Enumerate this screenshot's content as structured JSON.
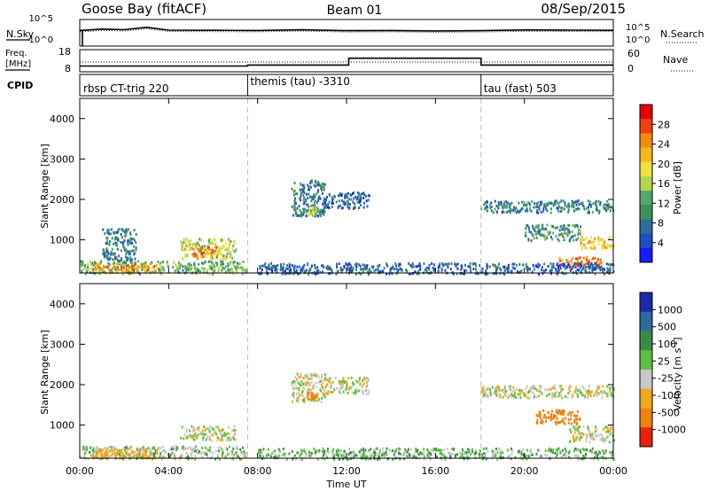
{
  "header": {
    "station": "Goose Bay (fitACF)",
    "beam": "Beam 01",
    "date": "08/Sep/2015"
  },
  "noise_panel": {
    "left_label": "N.Sky",
    "right_label": "N.Search",
    "left_ticks": [
      "10^5",
      "10^0"
    ],
    "right_ticks": [
      "10^5",
      "10^0"
    ]
  },
  "freq_panel": {
    "left_label_1": "Freq.",
    "left_label_2": "[MHz]",
    "right_label": "Nave",
    "left_ticks": [
      "18",
      "8"
    ],
    "right_ticks": [
      "60",
      "0"
    ]
  },
  "cpid_panel": {
    "label": "CPID",
    "segments": [
      {
        "label": "rbsp CT-trig 220",
        "start_hr": 0.0
      },
      {
        "label": "themis (tau) -3310",
        "start_hr": 7.55
      },
      {
        "label": "tau (fast) 503",
        "start_hr": 18.05
      }
    ]
  },
  "time_axis": {
    "title": "Time UT",
    "ticks": [
      "00:00",
      "04:00",
      "08:00",
      "12:00",
      "16:00",
      "20:00",
      "00:00"
    ]
  },
  "power_panel": {
    "ylabel": "Slant Range [km]",
    "yticks": [
      "4000",
      "3000",
      "2000",
      "1000"
    ],
    "colorbar_label": "Power [dB]",
    "colorbar_ticks": [
      "28",
      "24",
      "20",
      "16",
      "12",
      "8",
      "4"
    ],
    "colors": [
      "#1a1aff",
      "#1f4fbf",
      "#2e6b9e",
      "#3f8f5a",
      "#55a86a",
      "#b5d84a",
      "#f0e040",
      "#f5b820",
      "#f58a10",
      "#f04010",
      "#e80000"
    ]
  },
  "velocity_panel": {
    "ylabel": "Slant Range [km]",
    "yticks": [
      "4000",
      "3000",
      "2000",
      "1000"
    ],
    "colorbar_label": "Velocity [m s^-1]",
    "colorbar_ticks": [
      "1000",
      "500",
      "100",
      "25",
      "-25",
      "-100",
      "-500",
      "-1000"
    ],
    "colors": [
      "#1a2aa8",
      "#2c6aa0",
      "#3a8a4a",
      "#5ec040",
      "#c8c8c8",
      "#f0a820",
      "#f08010",
      "#e82010"
    ]
  },
  "chart_data": [
    {
      "type": "line",
      "title": "N.Sky / N.Search",
      "x": [
        0,
        1,
        2,
        3,
        4,
        6,
        8,
        10,
        12,
        14,
        16,
        18,
        20,
        22,
        24
      ],
      "series": [
        {
          "values": [
            1000,
            2000,
            1500,
            5000,
            1200,
            1100,
            1000,
            1400,
            900,
            1000,
            800,
            900,
            1300,
            1200,
            1100
          ]
        }
      ],
      "ylim": [
        1,
        100000
      ]
    },
    {
      "type": "line",
      "title": "Freq. / Nave",
      "x": [
        0,
        7.55,
        7.55,
        12.1,
        12.1,
        18.05,
        18.05,
        24
      ],
      "series": [
        {
          "values": [
            10.5,
            10.5,
            11,
            11,
            14.5,
            14.5,
            11,
            11
          ]
        }
      ],
      "ylim": [
        8,
        18
      ]
    },
    {
      "type": "heatmap",
      "title": "Power [dB]",
      "xlabel": "Time UT",
      "ylabel": "Slant Range [km]",
      "xlim": [
        0,
        24
      ],
      "ylim": [
        180,
        4500
      ],
      "scatter_regions": [
        {
          "t": [
            0.0,
            7.5
          ],
          "r": [
            180,
            500
          ],
          "value": 12
        },
        {
          "t": [
            0.5,
            3.5
          ],
          "r": [
            200,
            450
          ],
          "value": 22
        },
        {
          "t": [
            1.0,
            2.5
          ],
          "r": [
            500,
            1300
          ],
          "value": 8
        },
        {
          "t": [
            4.5,
            7.0
          ],
          "r": [
            550,
            1050
          ],
          "value": 16
        },
        {
          "t": [
            5.0,
            6.2
          ],
          "r": [
            600,
            850
          ],
          "value": 24
        },
        {
          "t": [
            9.5,
            11.0
          ],
          "r": [
            1600,
            2500
          ],
          "value": 8
        },
        {
          "t": [
            10.2,
            10.6
          ],
          "r": [
            1650,
            1850
          ],
          "value": 16
        },
        {
          "t": [
            11.0,
            13.0
          ],
          "r": [
            1800,
            2200
          ],
          "value": 6
        },
        {
          "t": [
            18.0,
            24.0
          ],
          "r": [
            1700,
            2000
          ],
          "value": 8
        },
        {
          "t": [
            20.0,
            22.5
          ],
          "r": [
            1000,
            1400
          ],
          "value": 10
        },
        {
          "t": [
            22.5,
            24.0
          ],
          "r": [
            800,
            1100
          ],
          "value": 20
        },
        {
          "t": [
            21.5,
            23.5
          ],
          "r": [
            350,
            600
          ],
          "value": 24
        },
        {
          "t": [
            8.0,
            24.0
          ],
          "r": [
            180,
            450
          ],
          "value": 6
        }
      ]
    },
    {
      "type": "heatmap",
      "title": "Velocity [m s^-1]",
      "xlabel": "Time UT",
      "ylabel": "Slant Range [km]",
      "xlim": [
        0,
        24
      ],
      "ylim": [
        180,
        4500
      ],
      "scatter_regions": [
        {
          "t": [
            0.0,
            7.5
          ],
          "r": [
            180,
            500
          ],
          "value": 25
        },
        {
          "t": [
            0.5,
            3.5
          ],
          "r": [
            200,
            450
          ],
          "value": -100
        },
        {
          "t": [
            4.5,
            7.0
          ],
          "r": [
            650,
            1000
          ],
          "value": 0
        },
        {
          "t": [
            9.5,
            11.0
          ],
          "r": [
            1600,
            2300
          ],
          "value": 0
        },
        {
          "t": [
            10.2,
            10.6
          ],
          "r": [
            1650,
            1850
          ],
          "value": -300
        },
        {
          "t": [
            11.0,
            13.0
          ],
          "r": [
            1800,
            2200
          ],
          "value": 0
        },
        {
          "t": [
            18.0,
            24.0
          ],
          "r": [
            1700,
            2000
          ],
          "value": 0
        },
        {
          "t": [
            20.5,
            22.5
          ],
          "r": [
            1050,
            1400
          ],
          "value": -400
        },
        {
          "t": [
            22.0,
            24.0
          ],
          "r": [
            600,
            1000
          ],
          "value": 0
        },
        {
          "t": [
            8.0,
            24.0
          ],
          "r": [
            180,
            450
          ],
          "value": 50
        }
      ]
    }
  ]
}
